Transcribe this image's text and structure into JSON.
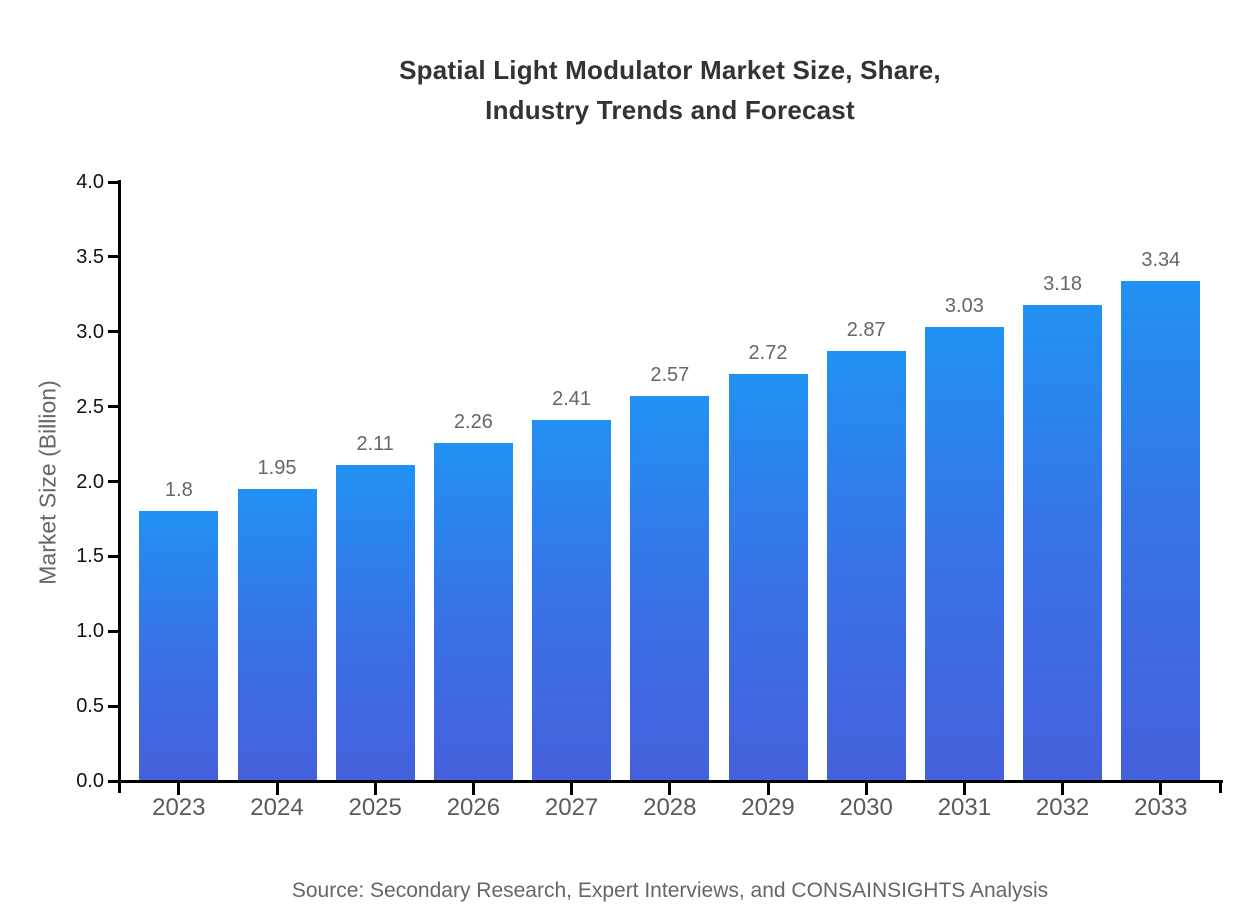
{
  "chart": {
    "title_line1": "Spatial Light Modulator Market Size, Share,",
    "title_line2": "Industry Trends and Forecast",
    "source": "Source: Secondary Research, Expert Interviews, and CONSAINSIGHTS Analysis"
  },
  "chart_data": {
    "type": "bar",
    "title": "Spatial Light Modulator Market Size, Share, Industry Trends and Forecast",
    "xlabel": "",
    "ylabel": "Market Size (Billion)",
    "categories": [
      "2023",
      "2024",
      "2025",
      "2026",
      "2027",
      "2028",
      "2029",
      "2030",
      "2031",
      "2032",
      "2033"
    ],
    "values": [
      1.8,
      1.95,
      2.11,
      2.26,
      2.41,
      2.57,
      2.72,
      2.87,
      3.03,
      3.18,
      3.34
    ],
    "value_labels": [
      "1.8",
      "1.95",
      "2.11",
      "2.26",
      "2.41",
      "2.57",
      "2.72",
      "2.87",
      "3.03",
      "3.18",
      "3.34"
    ],
    "ylim": [
      0.0,
      4.0
    ],
    "ytick_labels": [
      "0.0",
      "0.5",
      "1.0",
      "1.5",
      "2.0",
      "2.5",
      "3.0",
      "3.5",
      "4.0"
    ],
    "grid": false,
    "legend": false,
    "source": "Source: Secondary Research, Expert Interviews, and CONSAINSIGHTS Analysis",
    "colors": {
      "bar_gradient_top": "#2191f3",
      "bar_gradient_bottom": "#4560db",
      "axis": "#000000",
      "ytick_label": "#111111",
      "category_label": "#5a5a5a",
      "value_label": "#666666",
      "title": "#333333",
      "ylabel": "#666666",
      "source_text": "#666666",
      "background": "#ffffff"
    }
  }
}
